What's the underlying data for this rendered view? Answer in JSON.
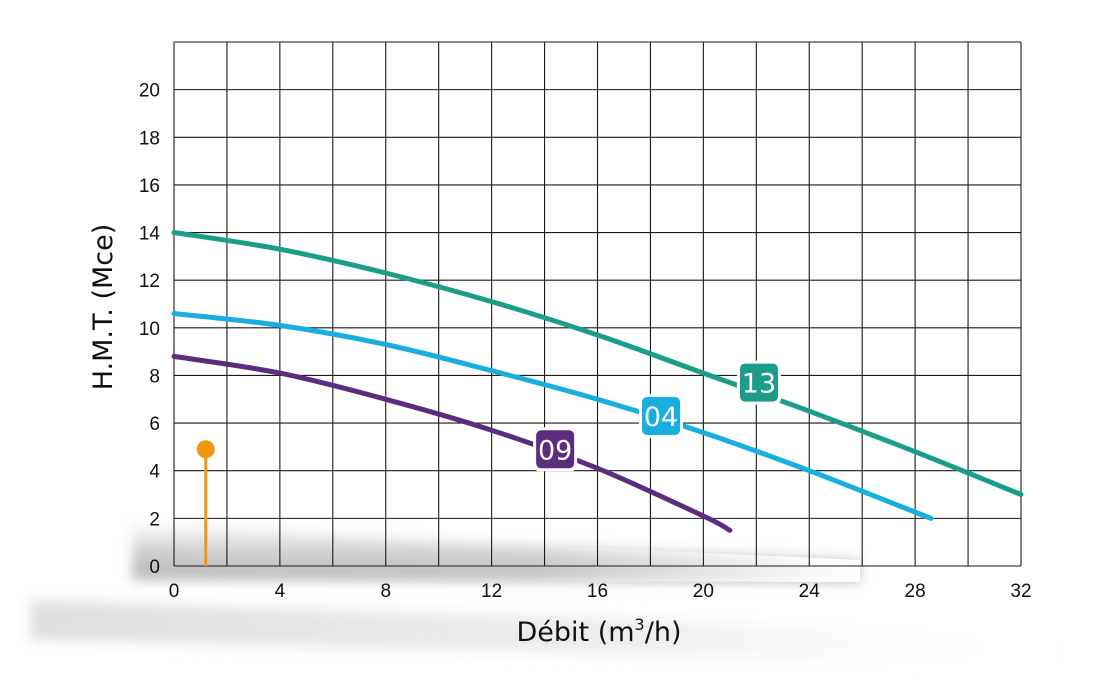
{
  "chart_data": {
    "type": "line",
    "xlabel": "Débit (m³/h)",
    "xlabel_main": "Débit (m",
    "xlabel_sup": "3",
    "xlabel_tail": "/h)",
    "ylabel": "H.M.T. (Mce)",
    "xlim": [
      0,
      32
    ],
    "ylim": [
      0,
      22
    ],
    "x_tick_labels": [
      "0",
      "4",
      "8",
      "12",
      "16",
      "20",
      "24",
      "28",
      "32"
    ],
    "y_tick_labels": [
      "0",
      "2",
      "4",
      "6",
      "8",
      "10",
      "12",
      "14",
      "16",
      "18",
      "20"
    ],
    "grid": true,
    "series": [
      {
        "name": "13",
        "color": "#1a9e8a",
        "x": [
          0,
          4,
          8,
          12,
          16,
          20,
          24,
          28,
          32
        ],
        "y": [
          14.0,
          13.3,
          12.3,
          11.1,
          9.7,
          8.1,
          6.5,
          4.8,
          3.0
        ],
        "label_at": [
          22.1,
          7.7
        ]
      },
      {
        "name": "04",
        "color": "#19aee0",
        "x": [
          0,
          4,
          8,
          12,
          16,
          20,
          24,
          28.6
        ],
        "y": [
          10.6,
          10.1,
          9.3,
          8.2,
          7.0,
          5.6,
          4.0,
          2.0
        ],
        "label_at": [
          18.4,
          6.3
        ]
      },
      {
        "name": "09",
        "color": "#5c2d7f",
        "x": [
          0,
          4,
          8,
          12,
          16,
          20,
          21
        ],
        "y": [
          8.8,
          8.1,
          7.0,
          5.7,
          4.1,
          2.1,
          1.5
        ],
        "label_at": [
          14.4,
          4.9
        ]
      }
    ],
    "marker": {
      "color": "#f0970f",
      "x": 1.2,
      "y": 4.9
    }
  }
}
